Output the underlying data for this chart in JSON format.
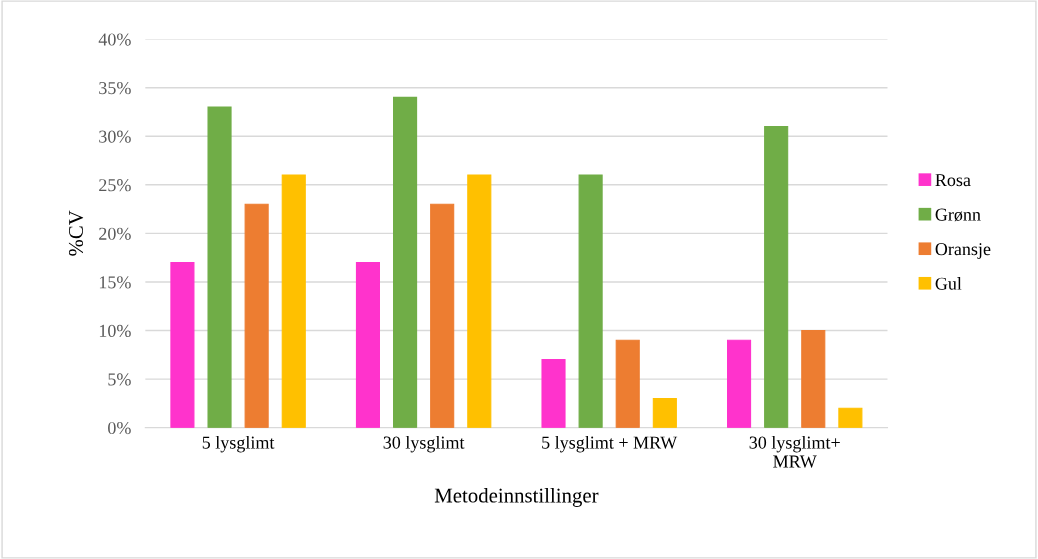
{
  "chart_data": {
    "type": "bar",
    "xlabel": "Metodeinnstillinger",
    "ylabel": "%CV",
    "categories": [
      "5 lysglimt",
      "30 lysglimt",
      "5 lysglimt + MRW",
      "30 lysglimt+\nMRW"
    ],
    "series": [
      {
        "name": "Rosa",
        "color": "#ff33cc",
        "values": [
          17,
          17,
          7,
          9
        ]
      },
      {
        "name": "Grønn",
        "color": "#70ad47",
        "values": [
          33,
          34,
          26,
          31
        ]
      },
      {
        "name": "Oransje",
        "color": "#ed7d31",
        "values": [
          23,
          23,
          9,
          10
        ]
      },
      {
        "name": "Gul",
        "color": "#ffc000",
        "values": [
          26,
          26,
          3,
          2
        ]
      }
    ],
    "ylim": [
      0,
      40
    ],
    "yticks": [
      {
        "value": 0,
        "label": "0%"
      },
      {
        "value": 5,
        "label": "5%"
      },
      {
        "value": 10,
        "label": "10%"
      },
      {
        "value": 15,
        "label": "15%"
      },
      {
        "value": 20,
        "label": "20%"
      },
      {
        "value": 25,
        "label": "25%"
      },
      {
        "value": 30,
        "label": "30%"
      },
      {
        "value": 35,
        "label": "35%"
      },
      {
        "value": 40,
        "label": "40%"
      }
    ],
    "grid": "y",
    "legend": "right"
  }
}
